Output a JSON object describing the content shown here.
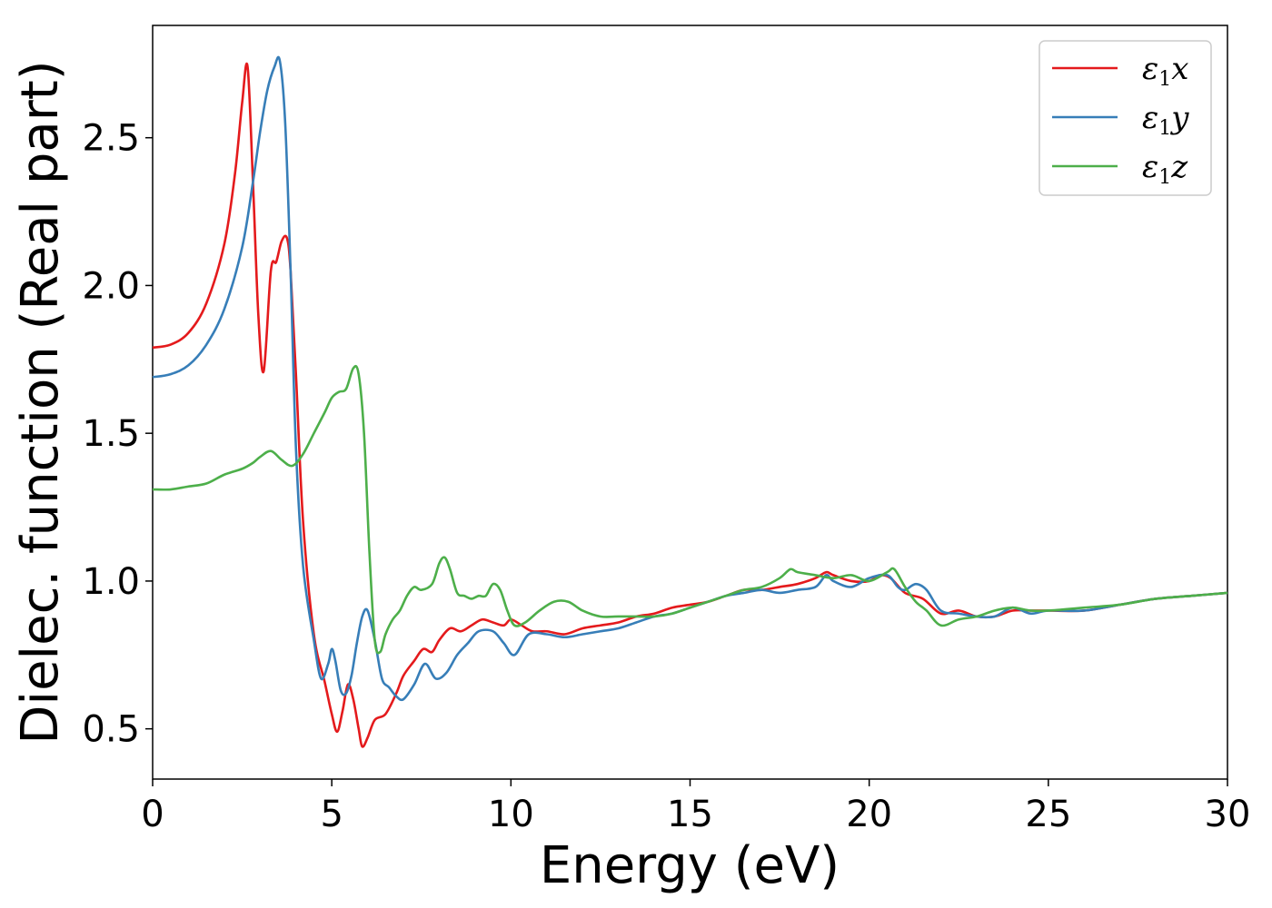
{
  "chart_data": {
    "type": "line",
    "xlabel": "Energy (eV)",
    "ylabel": "Dielec. function (Real part)",
    "xlim": [
      0,
      30
    ],
    "ylim": [
      0.33,
      2.88
    ],
    "xticks": [
      0,
      5,
      10,
      15,
      20,
      25,
      30
    ],
    "yticks": [
      0.5,
      1.0,
      1.5,
      2.0,
      2.5
    ],
    "xtick_labels": [
      "0",
      "5",
      "10",
      "15",
      "20",
      "25",
      "30"
    ],
    "ytick_labels": [
      "0.5",
      "1.0",
      "1.5",
      "2.0",
      "2.5"
    ],
    "grid": false,
    "legend_position": "top-right",
    "series": [
      {
        "name": "ε1x",
        "color": "#e41a1c",
        "x": [
          0,
          0.5,
          1.0,
          1.5,
          2.0,
          2.3,
          2.5,
          2.65,
          2.8,
          2.95,
          3.1,
          3.3,
          3.45,
          3.6,
          3.75,
          3.85,
          4.0,
          4.2,
          4.5,
          4.8,
          5.0,
          5.15,
          5.3,
          5.45,
          5.6,
          5.75,
          5.85,
          6.0,
          6.2,
          6.5,
          6.8,
          7.0,
          7.3,
          7.55,
          7.8,
          8.0,
          8.3,
          8.6,
          8.9,
          9.2,
          9.5,
          9.8,
          10.0,
          10.3,
          10.6,
          11.0,
          11.5,
          12.0,
          12.5,
          13.0,
          13.5,
          14.0,
          14.5,
          15.0,
          15.5,
          16.0,
          16.5,
          17.0,
          17.5,
          18.0,
          18.5,
          18.8,
          19.0,
          19.5,
          20.0,
          20.3,
          20.6,
          21.0,
          21.5,
          22.0,
          22.5,
          23.0,
          23.5,
          24.0,
          24.5,
          25.0,
          26.0,
          27.0,
          28.0,
          29.0,
          30.0
        ],
        "y": [
          1.79,
          1.8,
          1.84,
          1.94,
          2.14,
          2.38,
          2.62,
          2.74,
          2.35,
          1.9,
          1.71,
          2.05,
          2.08,
          2.15,
          2.16,
          2.05,
          1.7,
          1.2,
          0.82,
          0.66,
          0.55,
          0.49,
          0.56,
          0.65,
          0.6,
          0.5,
          0.44,
          0.47,
          0.53,
          0.55,
          0.62,
          0.68,
          0.73,
          0.77,
          0.76,
          0.8,
          0.84,
          0.83,
          0.85,
          0.87,
          0.86,
          0.85,
          0.87,
          0.85,
          0.83,
          0.83,
          0.82,
          0.84,
          0.85,
          0.86,
          0.88,
          0.89,
          0.91,
          0.92,
          0.93,
          0.95,
          0.97,
          0.97,
          0.98,
          0.99,
          1.01,
          1.03,
          1.02,
          1.0,
          1.0,
          1.02,
          1.01,
          0.96,
          0.94,
          0.89,
          0.9,
          0.88,
          0.88,
          0.9,
          0.9,
          0.9,
          0.9,
          0.92,
          0.94,
          0.95,
          0.96
        ]
      },
      {
        "name": "ε1y",
        "color": "#377eb8",
        "x": [
          0,
          0.5,
          1.0,
          1.5,
          2.0,
          2.5,
          2.8,
          3.0,
          3.2,
          3.4,
          3.55,
          3.7,
          3.85,
          4.0,
          4.2,
          4.5,
          4.7,
          4.9,
          5.0,
          5.1,
          5.25,
          5.4,
          5.55,
          5.7,
          5.85,
          6.0,
          6.2,
          6.4,
          6.6,
          6.8,
          7.0,
          7.3,
          7.6,
          7.9,
          8.2,
          8.5,
          8.8,
          9.1,
          9.5,
          9.8,
          10.1,
          10.5,
          11.0,
          11.5,
          12.0,
          12.5,
          13.0,
          13.5,
          14.0,
          14.5,
          15.0,
          15.5,
          16.0,
          16.5,
          17.0,
          17.5,
          18.0,
          18.5,
          18.8,
          19.0,
          19.5,
          20.0,
          20.5,
          20.8,
          21.0,
          21.3,
          21.6,
          22.0,
          22.5,
          23.0,
          23.5,
          24.0,
          24.5,
          25.0,
          26.0,
          27.0,
          28.0,
          29.0,
          30.0
        ],
        "y": [
          1.69,
          1.7,
          1.73,
          1.8,
          1.92,
          2.13,
          2.35,
          2.52,
          2.66,
          2.74,
          2.76,
          2.55,
          2.05,
          1.45,
          1.05,
          0.8,
          0.67,
          0.72,
          0.77,
          0.73,
          0.63,
          0.62,
          0.68,
          0.79,
          0.88,
          0.9,
          0.8,
          0.67,
          0.64,
          0.61,
          0.6,
          0.65,
          0.72,
          0.67,
          0.69,
          0.75,
          0.79,
          0.83,
          0.83,
          0.79,
          0.75,
          0.82,
          0.82,
          0.81,
          0.82,
          0.83,
          0.84,
          0.86,
          0.88,
          0.89,
          0.91,
          0.93,
          0.95,
          0.96,
          0.97,
          0.96,
          0.97,
          0.98,
          1.02,
          1.0,
          0.98,
          1.01,
          1.02,
          0.98,
          0.97,
          0.99,
          0.97,
          0.9,
          0.89,
          0.88,
          0.88,
          0.91,
          0.89,
          0.9,
          0.9,
          0.92,
          0.94,
          0.95,
          0.96
        ]
      },
      {
        "name": "ε1z",
        "color": "#4daf4a",
        "x": [
          0,
          0.5,
          1.0,
          1.5,
          2.0,
          2.5,
          2.8,
          3.0,
          3.3,
          3.6,
          3.9,
          4.2,
          4.5,
          4.8,
          5.0,
          5.2,
          5.4,
          5.6,
          5.75,
          5.9,
          6.05,
          6.2,
          6.35,
          6.5,
          6.7,
          6.9,
          7.1,
          7.3,
          7.5,
          7.8,
          8.0,
          8.15,
          8.3,
          8.5,
          8.7,
          8.9,
          9.1,
          9.3,
          9.5,
          9.7,
          9.9,
          10.1,
          10.4,
          10.8,
          11.2,
          11.6,
          12.0,
          12.5,
          13.0,
          13.5,
          14.0,
          14.5,
          15.0,
          15.5,
          16.0,
          16.5,
          17.0,
          17.5,
          17.8,
          18.0,
          18.5,
          19.0,
          19.5,
          20.0,
          20.5,
          20.7,
          21.0,
          21.3,
          21.6,
          22.0,
          22.5,
          23.0,
          23.5,
          24.0,
          24.5,
          25.0,
          26.0,
          27.0,
          28.0,
          29.0,
          30.0
        ],
        "y": [
          1.31,
          1.31,
          1.32,
          1.33,
          1.36,
          1.38,
          1.4,
          1.42,
          1.44,
          1.41,
          1.39,
          1.43,
          1.5,
          1.57,
          1.62,
          1.64,
          1.65,
          1.72,
          1.7,
          1.5,
          1.1,
          0.8,
          0.76,
          0.82,
          0.87,
          0.9,
          0.95,
          0.98,
          0.97,
          0.99,
          1.06,
          1.08,
          1.04,
          0.96,
          0.95,
          0.94,
          0.95,
          0.95,
          0.99,
          0.97,
          0.9,
          0.85,
          0.86,
          0.9,
          0.93,
          0.93,
          0.9,
          0.88,
          0.88,
          0.88,
          0.88,
          0.89,
          0.91,
          0.93,
          0.95,
          0.97,
          0.98,
          1.01,
          1.04,
          1.03,
          1.02,
          1.01,
          1.02,
          1.0,
          1.03,
          1.04,
          0.98,
          0.93,
          0.9,
          0.85,
          0.87,
          0.88,
          0.9,
          0.91,
          0.9,
          0.9,
          0.91,
          0.92,
          0.94,
          0.95,
          0.96
        ]
      }
    ]
  }
}
